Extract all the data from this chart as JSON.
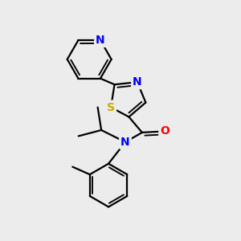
{
  "background_color": "#ececec",
  "atom_colors": {
    "N": "#0000ff",
    "S": "#ccaa00",
    "O": "#ff0000",
    "C": "#000000"
  },
  "bond_color": "#000000",
  "bond_width": 1.6,
  "font_size_atom": 10
}
